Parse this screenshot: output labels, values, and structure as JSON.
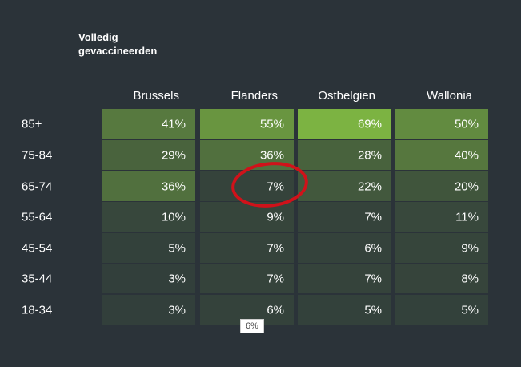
{
  "chart_data": {
    "type": "heatmap",
    "title": "Volledig\ngevaccineerden",
    "columns": [
      "Brussels",
      "Flanders",
      "Ostbelgien",
      "Wallonia"
    ],
    "rows": [
      "85+",
      "75-84",
      "65-74",
      "55-64",
      "45-54",
      "35-44",
      "18-34"
    ],
    "values": [
      [
        41,
        55,
        69,
        50
      ],
      [
        29,
        36,
        28,
        40
      ],
      [
        36,
        7,
        22,
        20
      ],
      [
        10,
        9,
        7,
        11
      ],
      [
        5,
        7,
        6,
        9
      ],
      [
        3,
        7,
        7,
        8
      ],
      [
        3,
        6,
        5,
        5
      ]
    ],
    "value_suffix": "%",
    "color_low": "#313d3b",
    "color_high": "#7cb342",
    "highlight": {
      "row": "65-74",
      "column": "Flanders",
      "color": "#d0121a"
    }
  },
  "tooltip": {
    "text": "6%"
  }
}
